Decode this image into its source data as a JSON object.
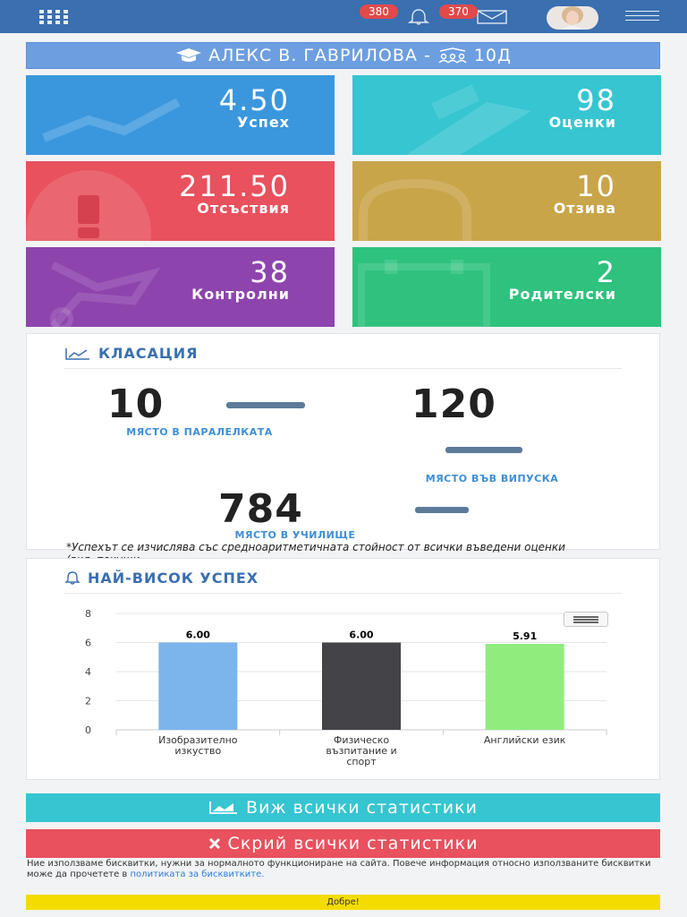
{
  "header": {
    "notifications_count": "380",
    "messages_count": "370",
    "icons": [
      "menu-grid-icon",
      "bell-icon",
      "envelope-icon",
      "avatar",
      "hamburger-icon"
    ]
  },
  "student": {
    "name": "АЛЕКС В. ГАВРИЛОВА -",
    "class": "10Д"
  },
  "stats": [
    {
      "value": "4.50",
      "label": "Успех",
      "color": "#3a97dd"
    },
    {
      "value": "98",
      "label": "Оценки",
      "color": "#36c5d1"
    },
    {
      "value": "211.50",
      "label": "Отсъствия",
      "color": "#e8515d"
    },
    {
      "value": "10",
      "label": "Отзива",
      "color": "#c9a54a"
    },
    {
      "value": "38",
      "label": "Контролни",
      "color": "#8e44ad"
    },
    {
      "value": "2",
      "label": "Родителски",
      "color": "#2ec27e"
    }
  ],
  "ranking": {
    "title": "КЛАСАЦИЯ",
    "parallel_value": "10",
    "parallel_label": "МЯСТО В ПАРАЛЕЛКАТА",
    "graduation_value": "120",
    "graduation_label": "МЯСТО ВЪВ ВИПУСКА",
    "school_value": "784",
    "school_label": "МЯСТО В УЧИЛИЩЕ",
    "footnote": "*Успехът се изчислява със средноаритметичната стойност от всички въведени оценки (вкл. текущи"
  },
  "best": {
    "title": "НАЙ-ВИСОК УСПЕХ"
  },
  "chart_data": {
    "type": "bar",
    "categories": [
      "Изобразително изкуство",
      "Физическо възпитание и спорт",
      "Английски език"
    ],
    "category_lines": [
      [
        "Изобразително",
        "изкуство"
      ],
      [
        "Физическо",
        "възпитание и",
        "спорт"
      ],
      [
        "Английски език"
      ]
    ],
    "values": [
      6.0,
      6.0,
      5.91
    ],
    "data_labels": [
      "6.00",
      "6.00",
      "5.91"
    ],
    "colors": [
      "#7cb5ec",
      "#434348",
      "#90ed7d"
    ],
    "ylim": [
      0,
      8
    ],
    "yticks": [
      0,
      2,
      4,
      6,
      8
    ],
    "grid": true,
    "legend": "none",
    "title": "",
    "xlabel": "",
    "ylabel": ""
  },
  "buttons": {
    "view_all": "Виж всички статистики",
    "hide_all": "Скрий всички статистики",
    "view_color": "#36c5d1",
    "hide_color": "#e8515d"
  },
  "cookie": {
    "text": "Ние използваме бисквитки, нужни за нормалното функциониране на сайта. Повече информация относно използваните бисквитки може да прочетете в",
    "link": "политиката за бисквитките.",
    "ok": "Добре!"
  }
}
